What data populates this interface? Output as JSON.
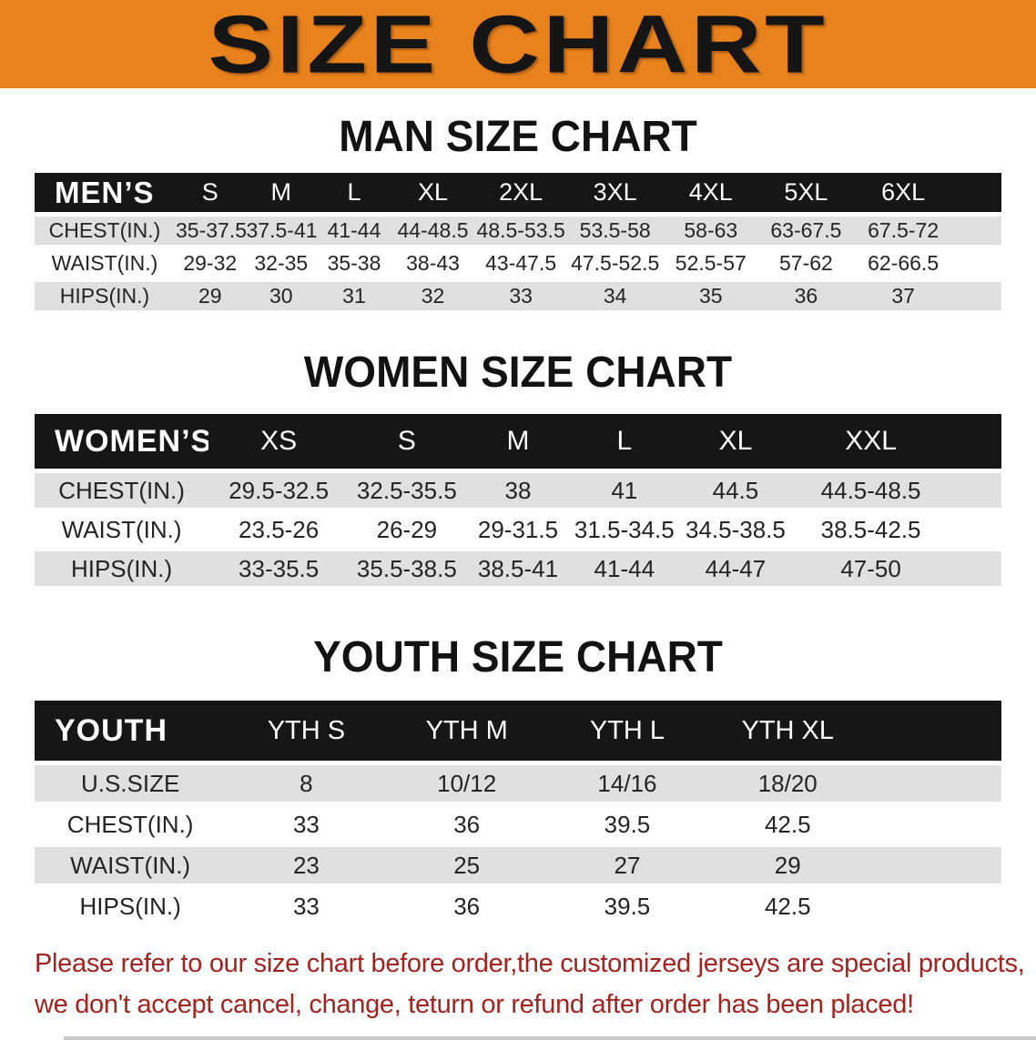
{
  "banner": {
    "title": "SIZE CHART",
    "bg_color": "#E8821C",
    "text_color": "#151515"
  },
  "colors": {
    "header_bar": "#161616",
    "row_stripe": "#E0E0E0",
    "row_plain": "#FFFFFF"
  },
  "sections": [
    {
      "title": "MAN SIZE CHART",
      "table": {
        "header_label": "MEN’S",
        "columns": [
          "S",
          "M",
          "L",
          "XL",
          "2XL",
          "3XL",
          "4XL",
          "5XL",
          "6XL"
        ],
        "rows": [
          {
            "label": "CHEST(IN.)",
            "values": [
              "35-37.5",
              "37.5-41",
              "41-44",
              "44-48.5",
              "48.5-53.5",
              "53.5-58",
              "58-63",
              "63-67.5",
              "67.5-72"
            ]
          },
          {
            "label": "WAIST(IN.)",
            "values": [
              "29-32",
              "32-35",
              "35-38",
              "38-43",
              "43-47.5",
              "47.5-52.5",
              "52.5-57",
              "57-62",
              "62-66.5"
            ]
          },
          {
            "label": "HIPS(IN.)",
            "values": [
              "29",
              "30",
              "31",
              "32",
              "33",
              "34",
              "35",
              "36",
              "37"
            ]
          }
        ]
      }
    },
    {
      "title": "WOMEN SIZE CHART",
      "table": {
        "header_label": "WOMEN’S",
        "columns": [
          "XS",
          "S",
          "M",
          "L",
          "XL",
          "XXL"
        ],
        "rows": [
          {
            "label": "CHEST(IN.)",
            "values": [
              "29.5-32.5",
              "32.5-35.5",
              "38",
              "41",
              "44.5",
              "44.5-48.5"
            ]
          },
          {
            "label": "WAIST(IN.)",
            "values": [
              "23.5-26",
              "26-29",
              "29-31.5",
              "31.5-34.5",
              "34.5-38.5",
              "38.5-42.5"
            ]
          },
          {
            "label": "HIPS(IN.)",
            "values": [
              "33-35.5",
              "35.5-38.5",
              "38.5-41",
              "41-44",
              "44-47",
              "47-50"
            ]
          }
        ]
      }
    },
    {
      "title": "YOUTH SIZE CHART",
      "table": {
        "header_label": "YOUTH",
        "columns": [
          "YTH S",
          "YTH M",
          "YTH L",
          "YTH XL"
        ],
        "rows": [
          {
            "label": "U.S.SIZE",
            "values": [
              "8",
              "10/12",
              "14/16",
              "18/20"
            ]
          },
          {
            "label": "CHEST(IN.)",
            "values": [
              "33",
              "36",
              "39.5",
              "42.5"
            ]
          },
          {
            "label": "WAIST(IN.)",
            "values": [
              "23",
              "25",
              "27",
              "29"
            ]
          },
          {
            "label": "HIPS(IN.)",
            "values": [
              "33",
              "36",
              "39.5",
              "42.5"
            ]
          }
        ]
      }
    }
  ],
  "footnote": {
    "color": "#A3231F",
    "line1": "Please refer to our size chart before order,the customized jerseys are special products,",
    "line2": "we don't accept cancel, change, teturn or refund after order has been placed!"
  }
}
